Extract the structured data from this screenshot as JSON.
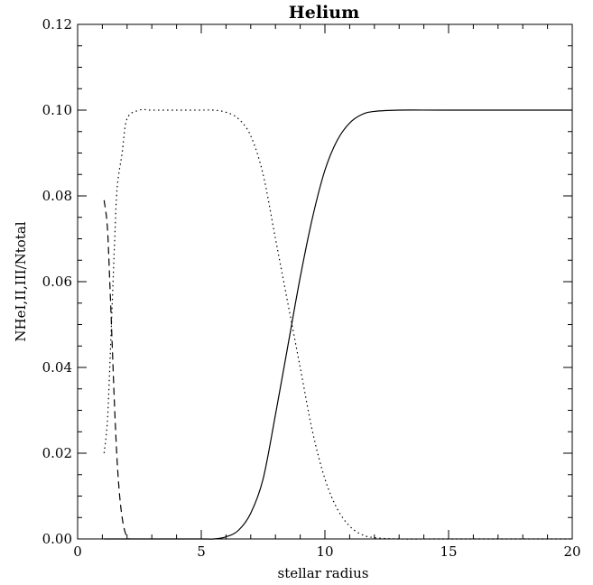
{
  "chart_data": {
    "type": "line",
    "title": "Helium",
    "xlabel": "stellar radius",
    "ylabel": "NHeI,II,III/Ntotal",
    "xlim": [
      0,
      20
    ],
    "ylim": [
      0,
      0.12
    ],
    "x_ticks": [
      0,
      5,
      10,
      15,
      20
    ],
    "x_tick_labels": [
      "0",
      "5",
      "10",
      "15",
      "20"
    ],
    "y_ticks": [
      0.0,
      0.02,
      0.04,
      0.06,
      0.08,
      0.1,
      0.12
    ],
    "y_tick_labels": [
      "0.00",
      "0.02",
      "0.04",
      "0.06",
      "0.08",
      "0.10",
      "0.12"
    ],
    "grid": false,
    "legend": "none",
    "line_color": "#000000",
    "series": [
      {
        "line_style": "dashed",
        "x": [
          1.07,
          1.2,
          1.3,
          1.4,
          1.5,
          1.6,
          1.7,
          1.8,
          1.9,
          2.0,
          2.1
        ],
        "y": [
          0.079,
          0.073,
          0.06,
          0.045,
          0.03,
          0.018,
          0.01,
          0.005,
          0.002,
          0.0005,
          0.0
        ]
      },
      {
        "line_style": "dotted",
        "x": [
          1.07,
          1.2,
          1.3,
          1.4,
          1.5,
          1.6,
          1.8,
          2.0,
          2.5,
          3,
          4,
          5,
          5.5,
          6,
          6.5,
          7,
          7.5,
          8,
          8.5,
          9,
          9.5,
          10,
          10.5,
          11,
          11.5,
          12,
          13,
          15,
          20
        ],
        "y": [
          0.02,
          0.027,
          0.04,
          0.055,
          0.07,
          0.082,
          0.09,
          0.098,
          0.1,
          0.1,
          0.1,
          0.1,
          0.1,
          0.0995,
          0.098,
          0.094,
          0.085,
          0.07,
          0.055,
          0.04,
          0.025,
          0.014,
          0.007,
          0.003,
          0.001,
          0.0003,
          0.0,
          0.0,
          0.0
        ]
      },
      {
        "line_style": "solid",
        "x": [
          1.07,
          5,
          5.5,
          6,
          6.5,
          7,
          7.5,
          8,
          8.5,
          9,
          9.5,
          10,
          10.5,
          11,
          11.5,
          12,
          13,
          15,
          20
        ],
        "y": [
          0.0,
          0.0,
          0.0,
          0.0005,
          0.002,
          0.006,
          0.014,
          0.029,
          0.045,
          0.061,
          0.075,
          0.086,
          0.093,
          0.097,
          0.099,
          0.0997,
          0.1,
          0.1,
          0.1
        ]
      }
    ]
  }
}
